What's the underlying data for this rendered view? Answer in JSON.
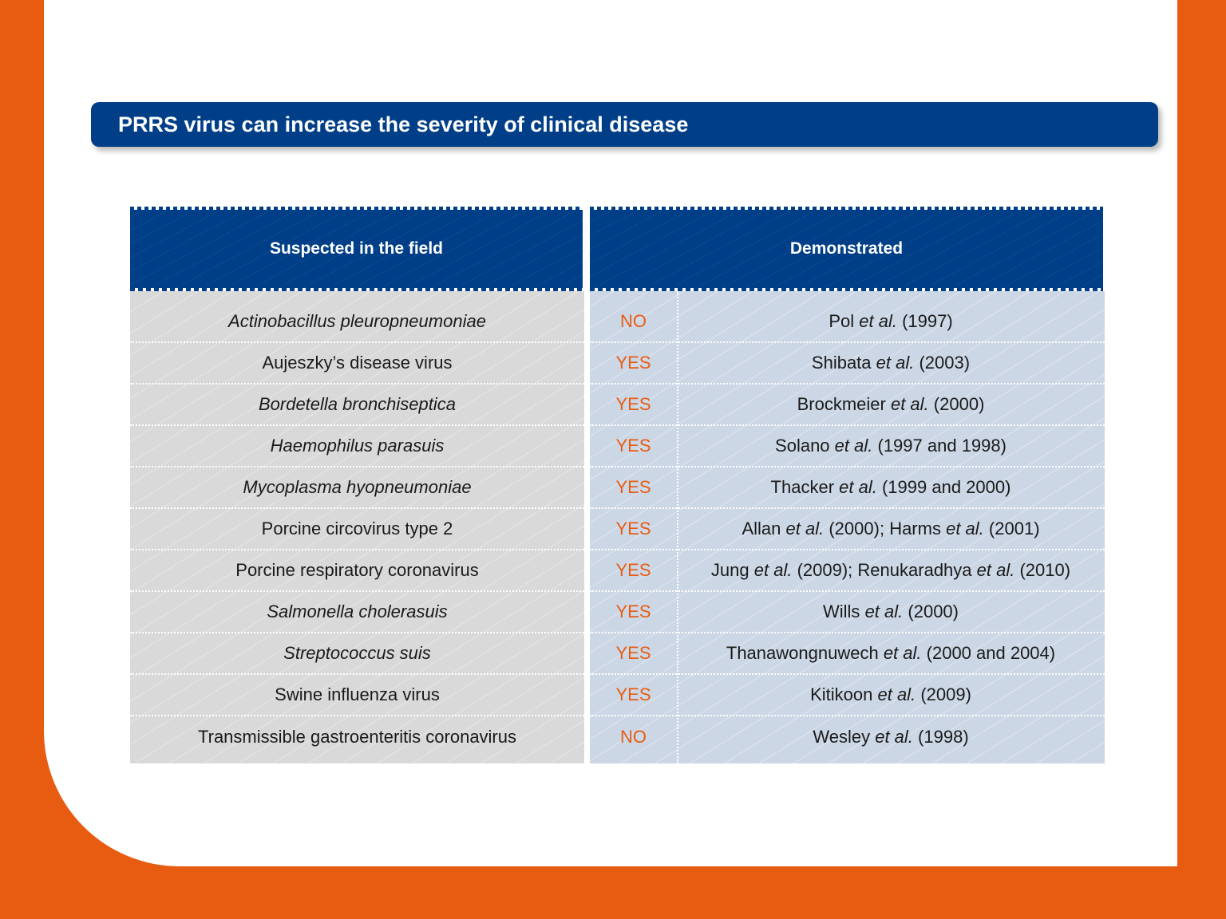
{
  "title": "PRRS virus can increase the severity of clinical disease",
  "headers": {
    "left": "Suspected in the field",
    "right": "Demonstrated"
  },
  "rows": [
    {
      "agent": "Actinobacillus pleuropneumoniae",
      "italic": true,
      "answer": "NO",
      "ref_author": "Pol",
      "ref_etal": "et al.",
      "ref_year": "(1997)"
    },
    {
      "agent": "Aujeszky’s disease virus",
      "italic": false,
      "answer": "YES",
      "ref_author": "Shibata",
      "ref_etal": "et al.",
      "ref_year": "(2003)"
    },
    {
      "agent": "Bordetella bronchiseptica",
      "italic": true,
      "answer": "YES",
      "ref_author": "Brockmeier",
      "ref_etal": "et al.",
      "ref_year": "(2000)"
    },
    {
      "agent": "Haemophilus parasuis",
      "italic": true,
      "answer": "YES",
      "ref_author": "Solano",
      "ref_etal": "et al.",
      "ref_year": "(1997 and 1998)"
    },
    {
      "agent": "Mycoplasma hyopneumoniae",
      "italic": true,
      "answer": "YES",
      "ref_author": "Thacker",
      "ref_etal": "et al.",
      "ref_year": "(1999 and 2000)"
    },
    {
      "agent": "Porcine circovirus type 2",
      "italic": false,
      "answer": "YES",
      "ref_author": "Allan",
      "ref_etal": "et al.",
      "ref_year": "(2000);",
      "ref_author2": "Harms",
      "ref_etal2": "et al.",
      "ref_year2": "(2001)"
    },
    {
      "agent": "Porcine respiratory coronavirus",
      "italic": false,
      "answer": "YES",
      "ref_author": "Jung",
      "ref_etal": "et al.",
      "ref_year": "(2009);",
      "ref_author2": "Renukaradhya",
      "ref_etal2": "et al.",
      "ref_year2": "(2010)"
    },
    {
      "agent": "Salmonella cholerasuis",
      "italic": true,
      "answer": "YES",
      "ref_author": "Wills",
      "ref_etal": "et al.",
      "ref_year": "(2000)"
    },
    {
      "agent": "Streptococcus suis",
      "italic": true,
      "answer": "YES",
      "ref_author": "Thanawongnuwech",
      "ref_etal": "et al.",
      "ref_year": "(2000 and 2004)"
    },
    {
      "agent": "Swine influenza virus",
      "italic": false,
      "answer": "YES",
      "ref_author": "Kitikoon",
      "ref_etal": "et al.",
      "ref_year": "(2009)"
    },
    {
      "agent": "Transmissible gastroenteritis coronavirus",
      "italic": false,
      "answer": "NO",
      "ref_author": "Wesley",
      "ref_etal": "et al.",
      "ref_year": "(1998)"
    }
  ],
  "colors": {
    "brand_blue": "#003f87",
    "accent_orange": "#e85c12",
    "left_column_bg": "#d9d9d9",
    "right_column_bg": "#ccd7e6"
  }
}
